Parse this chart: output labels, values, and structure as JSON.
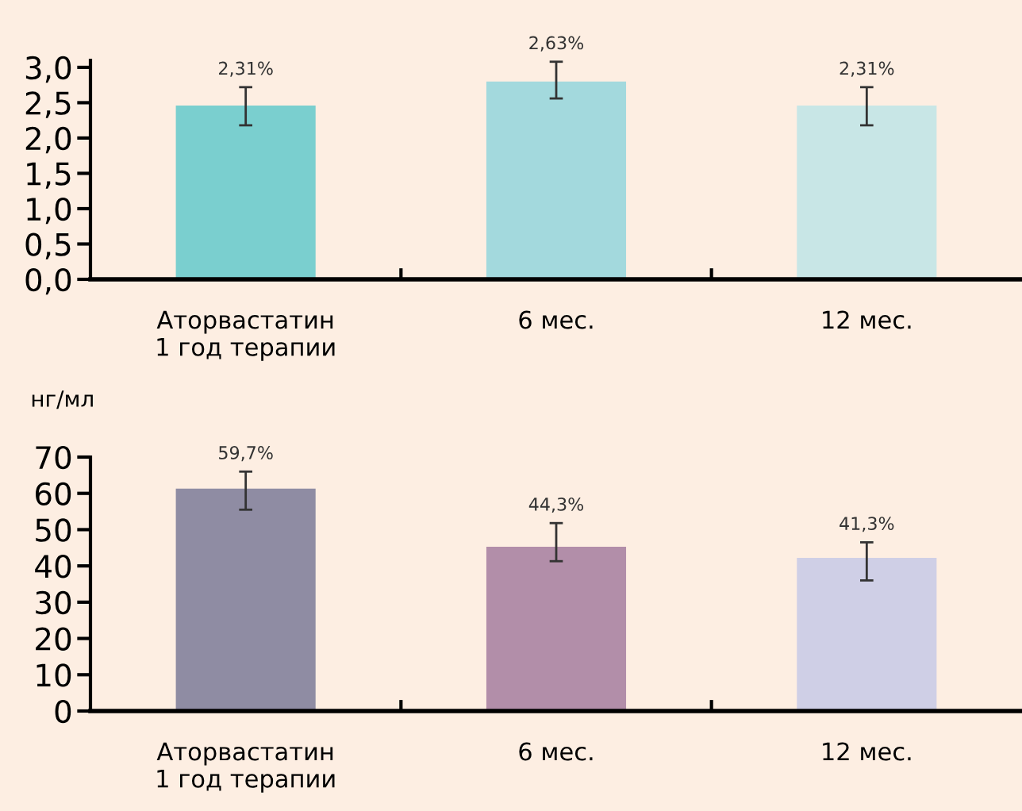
{
  "chart_data": [
    {
      "type": "bar",
      "categories": [
        "Аторвастатин\n1 год терапии",
        "6 мес.",
        "12 мес."
      ],
      "values": [
        2.46,
        2.8,
        2.46
      ],
      "colors": [
        "#7acfcf",
        "#a3d9dd",
        "#c8e6e6"
      ],
      "errors": [
        [
          2.18,
          2.72
        ],
        [
          2.56,
          3.08
        ],
        [
          2.18,
          2.72
        ]
      ],
      "annotations": [
        {
          "text": "2,31%",
          "x": "Аторвастатин\n1 год терапии",
          "y": 2.72
        },
        {
          "text": "2,63%",
          "x": "6 мес.",
          "y": 3.08
        },
        {
          "text": "2,31%",
          "x": "12 мес.",
          "y": 2.72
        }
      ],
      "ylim": [
        0,
        3.1
      ],
      "yticks": [
        {
          "value": 0,
          "label": "0,0"
        },
        {
          "value": 0.5,
          "label": "0,5"
        },
        {
          "value": 1,
          "label": "1,0"
        },
        {
          "value": 1.5,
          "label": "1,5"
        },
        {
          "value": 2,
          "label": "2,0"
        },
        {
          "value": 2.5,
          "label": "2,5"
        },
        {
          "value": 3,
          "label": "3,0"
        }
      ],
      "grid": false,
      "legend": false
    },
    {
      "type": "bar",
      "ylabel": "нг/мл",
      "categories": [
        "Аторвастатин\n1 год терапии",
        "6 мес.",
        "12 мес."
      ],
      "values": [
        61.3,
        45.3,
        42.2
      ],
      "colors": [
        "#8f8ca3",
        "#b28ea9",
        "#cfcfe6"
      ],
      "errors": [
        [
          55.5,
          66.0
        ],
        [
          41.3,
          51.8
        ],
        [
          36.0,
          46.5
        ]
      ],
      "annotations": [
        {
          "text": "59,7%",
          "x": "Аторвастатин\n1 год терапии",
          "y": 66.0
        },
        {
          "text": "44,3%",
          "x": "6 мес.",
          "y": 51.8
        },
        {
          "text": "41,3%",
          "x": "12 мес.",
          "y": 46.5
        }
      ],
      "ylim": [
        0,
        70
      ],
      "yticks": [
        0,
        10,
        20,
        30,
        40,
        50,
        60,
        70
      ],
      "grid": false,
      "legend": false
    }
  ]
}
